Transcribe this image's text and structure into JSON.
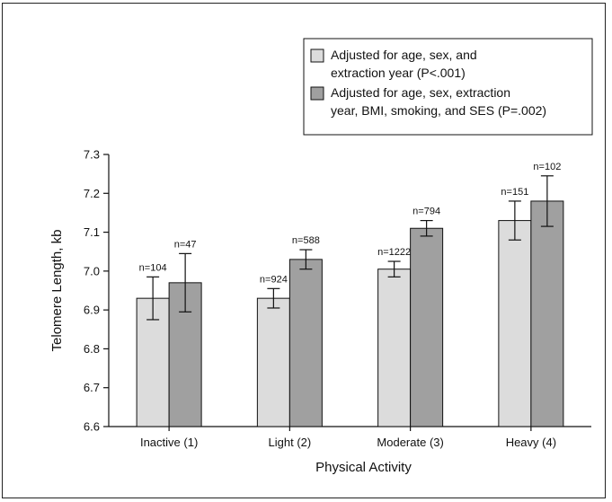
{
  "chart_data": {
    "type": "bar",
    "xlabel": "Physical Activity",
    "ylabel": "Telomere Length, kb",
    "ylim": [
      6.6,
      7.3
    ],
    "yticks": [
      "6.6",
      "6.7",
      "6.8",
      "6.9",
      "7.0",
      "7.1",
      "7.2",
      "7.3"
    ],
    "categories": [
      "Inactive (1)",
      "Light (2)",
      "Moderate (3)",
      "Heavy (4)"
    ],
    "error_bars": true,
    "legend_position": "top-right",
    "series": [
      {
        "name": "Adjusted for age, sex, and extraction year (P<.001)",
        "legend_lines": [
          "Adjusted for age, sex, and",
          "extraction year (P<.001)"
        ],
        "color": "#dcdcdc",
        "values": [
          6.93,
          6.93,
          7.005,
          7.13
        ],
        "err_low": [
          6.875,
          6.905,
          6.985,
          7.08
        ],
        "err_high": [
          6.985,
          6.955,
          7.025,
          7.18
        ],
        "n_labels": [
          "n=104",
          "n=924",
          "n=1222",
          "n=151"
        ]
      },
      {
        "name": "Adjusted for age, sex, extraction year, BMI, smoking, and SES (P=.002)",
        "legend_lines": [
          "Adjusted for age, sex, extraction",
          "year, BMI, smoking, and SES (P=.002)"
        ],
        "color": "#a0a0a0",
        "values": [
          6.97,
          7.03,
          7.11,
          7.18
        ],
        "err_low": [
          6.895,
          7.005,
          7.09,
          7.115
        ],
        "err_high": [
          7.045,
          7.055,
          7.13,
          7.245
        ],
        "n_labels": [
          "n=47",
          "n=588",
          "n=794",
          "n=102"
        ]
      }
    ]
  }
}
